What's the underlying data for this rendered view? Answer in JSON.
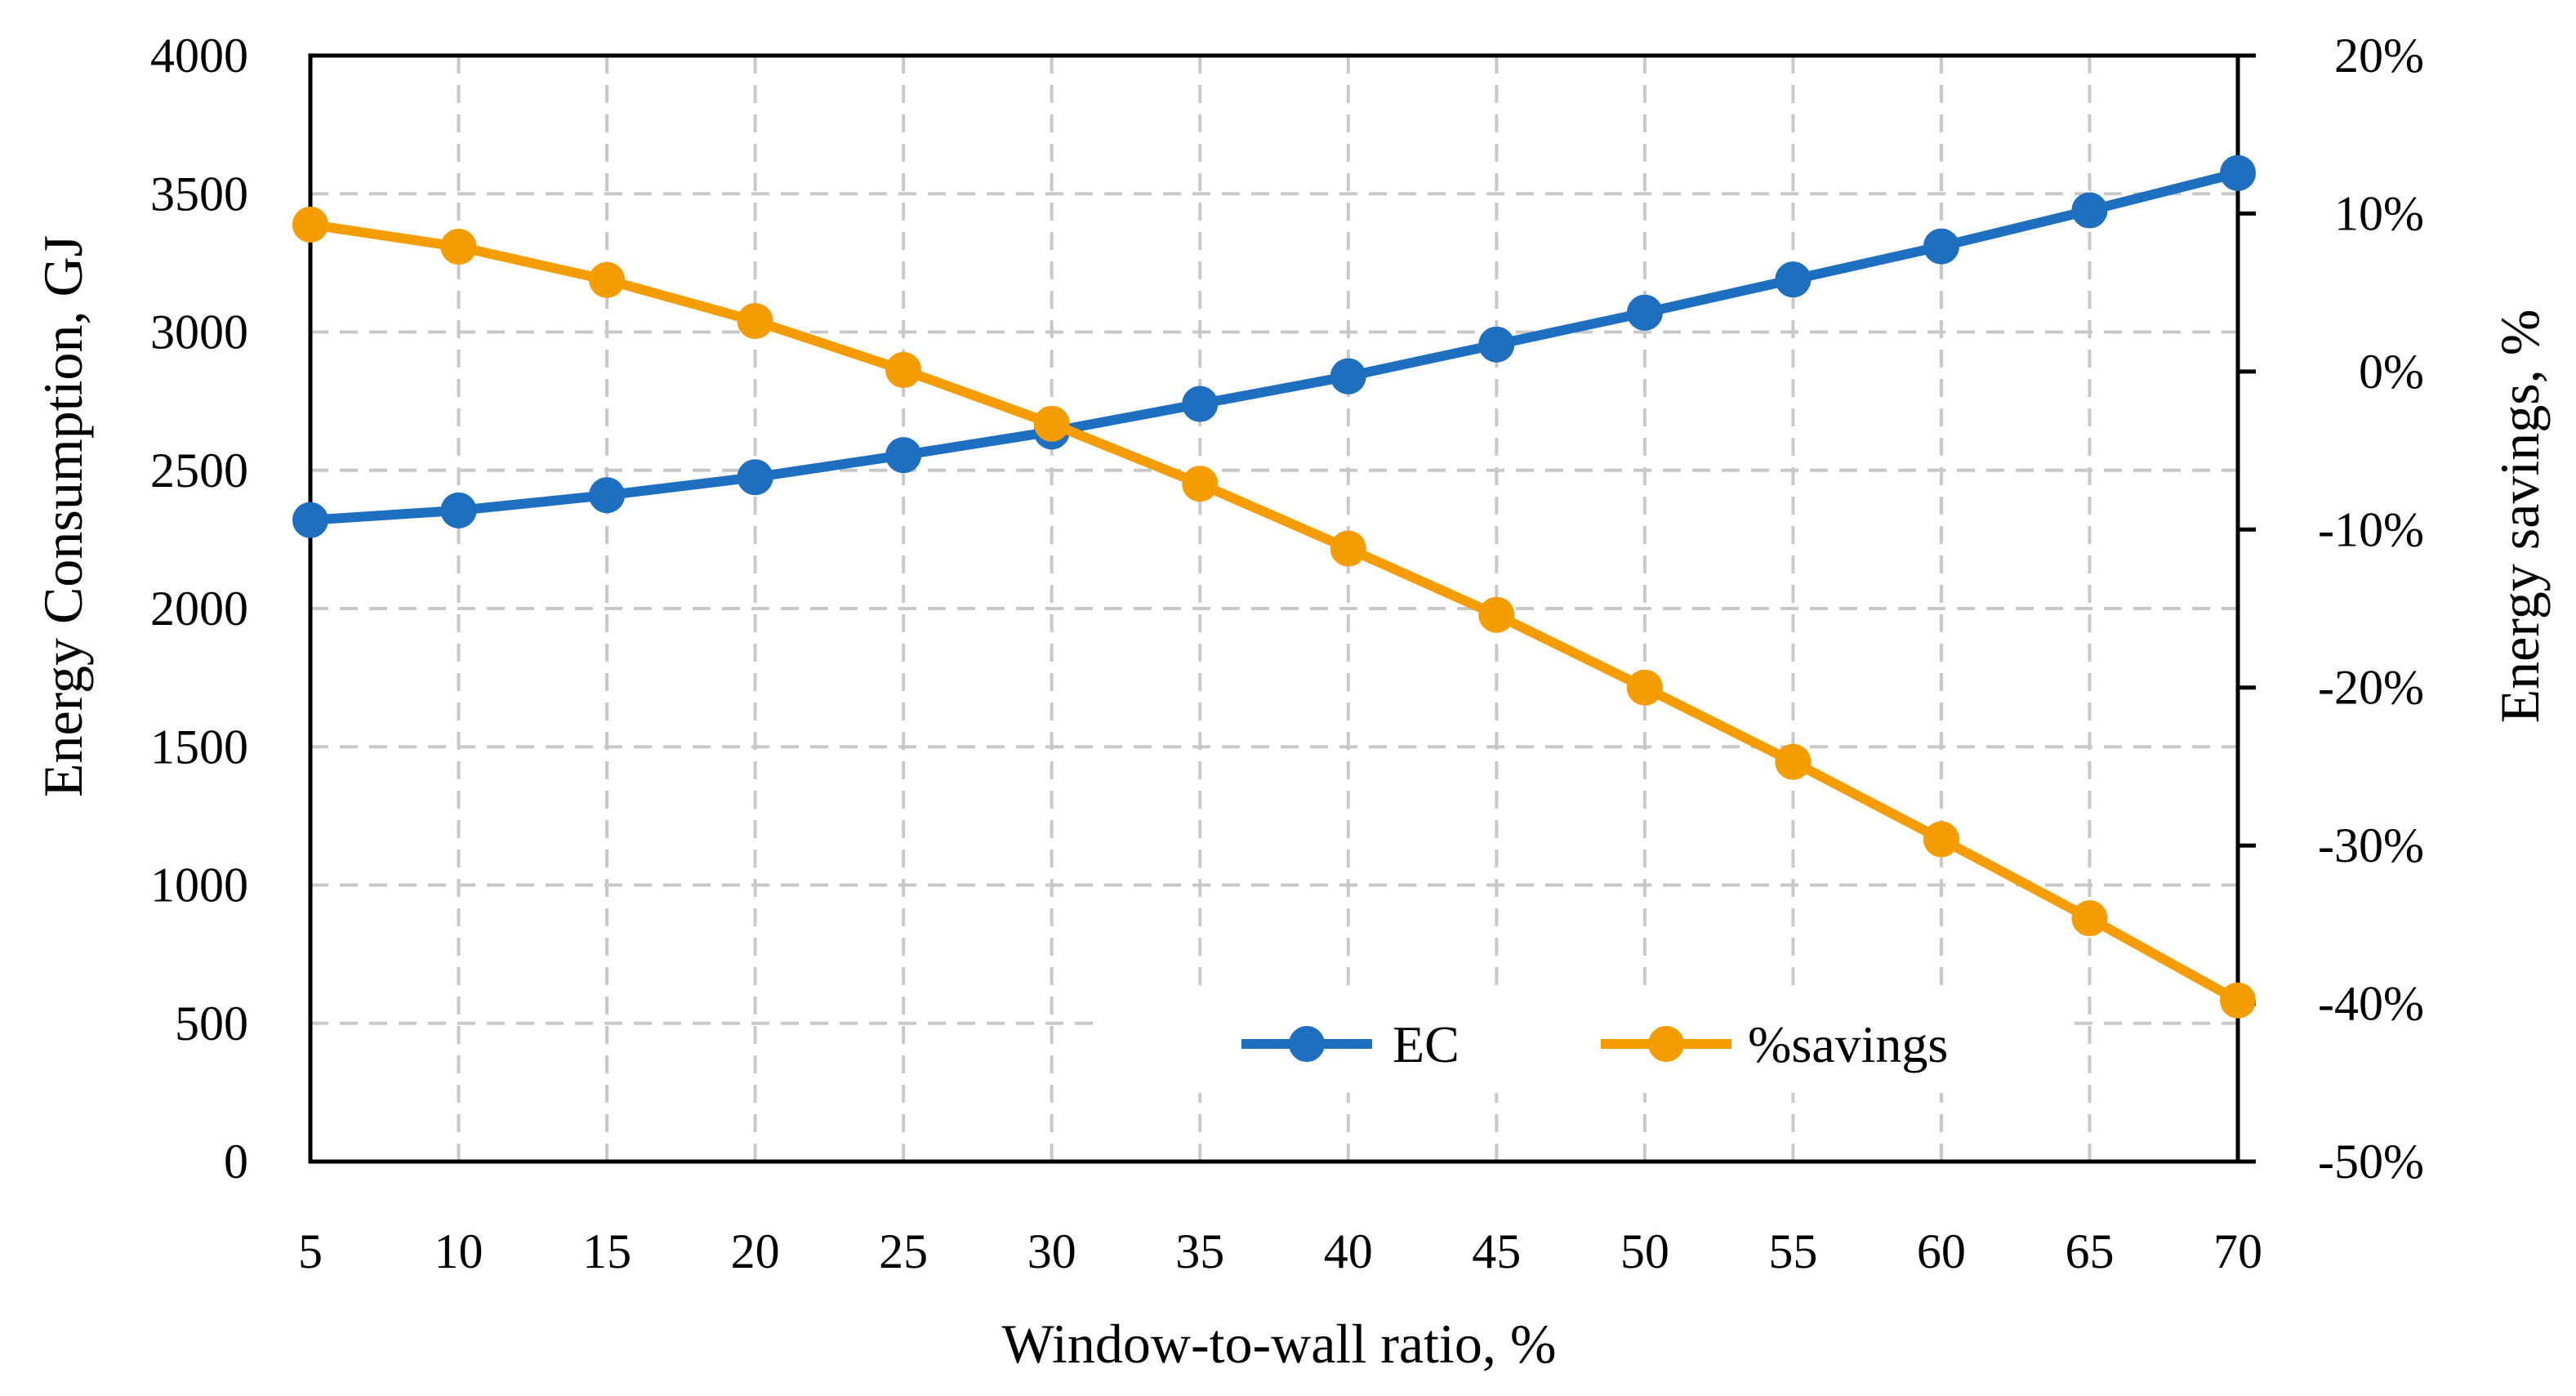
{
  "chart_data": {
    "type": "line",
    "xlabel": "Window-to-wall ratio, %",
    "ylabel": "Energy Consumption, GJ",
    "y2label": "Energy savings, %",
    "x": [
      5,
      10,
      15,
      20,
      25,
      30,
      35,
      40,
      45,
      50,
      55,
      60,
      65,
      70
    ],
    "x_ticks": [
      "5",
      "10",
      "15",
      "20",
      "25",
      "30",
      "35",
      "40",
      "45",
      "50",
      "55",
      "60",
      "65",
      "70"
    ],
    "ylim": [
      0,
      4000
    ],
    "y_ticks": [
      "0",
      "500",
      "1000",
      "1500",
      "2000",
      "2500",
      "3000",
      "3500",
      "4000"
    ],
    "y2lim": [
      -50,
      20
    ],
    "y2_ticks": [
      "-50%",
      "-40%",
      "-30%",
      "-20%",
      "-10%",
      "0%",
      "10%",
      "20%"
    ],
    "grid": true,
    "legend_position": "bottom-right",
    "series": [
      {
        "name": "EC",
        "axis": "left",
        "color": "#1f6fc0",
        "values": [
          2320,
          2355,
          2410,
          2475,
          2555,
          2640,
          2740,
          2840,
          2955,
          3070,
          3190,
          3310,
          3440,
          3575
        ]
      },
      {
        "name": "%savings",
        "axis": "right",
        "color": "#f59c00",
        "values": [
          9.3,
          7.9,
          5.8,
          3.2,
          0.1,
          -3.3,
          -7.1,
          -11.2,
          -15.4,
          -20.0,
          -24.7,
          -29.6,
          -34.6,
          -39.8
        ]
      }
    ]
  }
}
